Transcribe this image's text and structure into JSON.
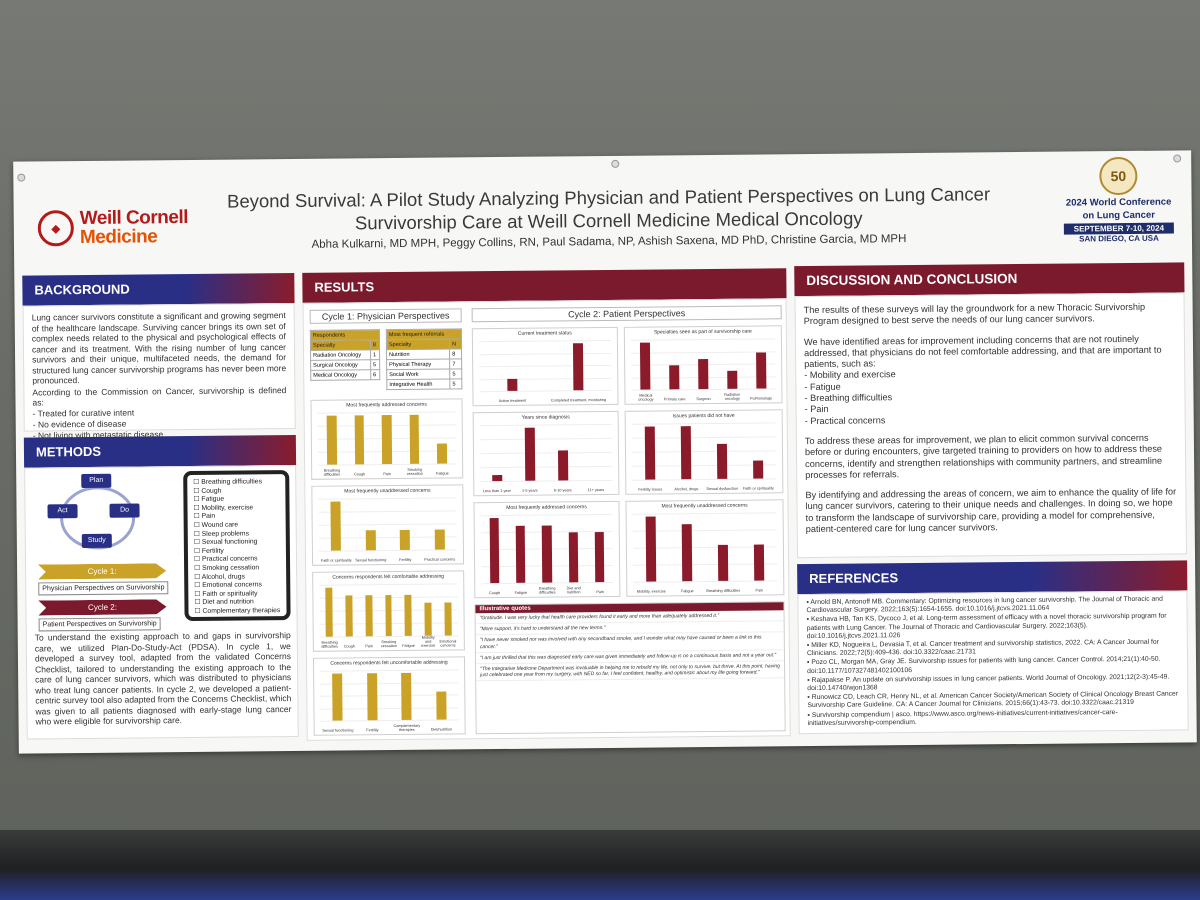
{
  "header": {
    "logo_line1": "Weill Cornell",
    "logo_line2": "Medicine",
    "title_line1": "Beyond Survival: A Pilot Study Analyzing Physician and Patient Perspectives on Lung Cancer",
    "title_line2": "Survivorship Care at Weill Cornell Medicine Medical Oncology",
    "authors": "Abha Kulkarni, MD MPH, Peggy Collins, RN,  Paul Sadama, NP,  Ashish Saxena, MD PhD, Christine Garcia, MD MPH",
    "conference_badge": "50",
    "conference_line1": "2024 World Conference",
    "conference_line2": "on Lung Cancer",
    "conference_dates": "SEPTEMBER 7-10, 2024",
    "conference_city": "SAN DIEGO, CA USA"
  },
  "background": {
    "heading": "BACKGROUND",
    "text": "Lung cancer survivors constitute a significant and growing segment of the healthcare landscape. Surviving cancer brings its own set of complex needs related to the physical and psychological effects of cancer and its treatment. With the rising number of lung cancer survivors and their unique, multifaceted needs, the demand for structured lung cancer survivorship programs has never been more pronounced.",
    "definition_intro": "According to the Commission on Cancer, survivorship is defined as:",
    "bullets": [
      "Treated for curative intent",
      "No evidence of disease",
      "Not living with metastatic disease"
    ]
  },
  "methods": {
    "heading": "METHODS",
    "cycle_nodes": [
      "Plan",
      "Do",
      "Study",
      "Act"
    ],
    "cycle1_label": "Cycle 1:",
    "cycle1_desc": "Physician Perspectives on Survivorship",
    "cycle2_label": "Cycle 2:",
    "cycle2_desc": "Patient Perspectives on Survivorship",
    "checklist": [
      "Breathing difficulties",
      "Cough",
      "Fatigue",
      "Mobility, exercise",
      "Pain",
      "Wound care",
      "Sleep problems",
      "Sexual functioning",
      "Fertility",
      "Practical concerns",
      "Smoking cessation",
      "Alcohol, drugs",
      "Emotional concerns",
      "Faith or spirituality",
      "Diet and nutrition",
      "Complementary therapies"
    ],
    "text": "To understand the existing approach to and gaps in survivorship care, we utilized Plan-Do-Study-Act (PDSA). In cycle 1, we developed a survey tool, adapted from the validated Concerns Checklist, tailored to understanding the existing approach to the care of lung cancer survivors, which was distributed to physicians who treat lung cancer patients. In cycle 2, we developed a patient-centric survey tool also adapted from the Concerns Checklist, which was given to all patients diagnosed with early-stage lung cancer who were eligible for survivorship care."
  },
  "results": {
    "heading": "RESULTS",
    "cycle1_title": "Cycle 1: Physician Perspectives",
    "cycle2_title": "Cycle 2: Patient Perspectives",
    "respondents_table": {
      "title": "Respondents",
      "headers": [
        "Specialty",
        "8"
      ],
      "rows": [
        [
          "Radiation Oncology",
          "1"
        ],
        [
          "Surgical Oncology",
          "5"
        ],
        [
          "Medical Oncology",
          "6"
        ]
      ]
    },
    "referrals_table": {
      "title": "Most frequent referrals",
      "headers": [
        "Specialty",
        "N"
      ],
      "rows": [
        [
          "Nutrition",
          "8"
        ],
        [
          "Physical Therapy",
          "7"
        ],
        [
          "Social Work",
          "5"
        ],
        [
          "Integrative Health",
          "5"
        ]
      ]
    },
    "quotes_heading": "Illustrative quotes",
    "quotes": [
      "\"Gratitude. I was very lucky that health care providers found it early and more than adequately addressed it.\"",
      "\"More support, it's hard to understand all the new terms.\"",
      "\"I have never smoked nor was involved with any secondhand smoke, and I wonder what may have caused or been a link to this cancer.\"",
      "\"I am just thrilled that this was diagnosed early care was given immediately and follow-up is on a continuous basis and not a year out.\"",
      "\"The Integrative Medicine Department was invaluable in helping me to rebuild my life, not only to survive, but thrive. At this point, having just celebrated one year from my surgery, with NED so far, I feel confident, healthy, and optimistic about my life going forward.\""
    ]
  },
  "chart_data": [
    {
      "id": "p1",
      "type": "bar",
      "title": "Most frequently addressed concerns",
      "color": "#c9a227",
      "categories": [
        "Breathing difficulties",
        "Cough",
        "Pain",
        "Smoking cessation",
        "Fatigue"
      ],
      "values": [
        5,
        5,
        5,
        5,
        2
      ]
    },
    {
      "id": "p2",
      "type": "bar",
      "title": "Most frequently unaddressed concerns",
      "color": "#c9a227",
      "categories": [
        "Faith or spirituality",
        "Sexual functioning",
        "Fertility",
        "Practical concerns"
      ],
      "values": [
        5,
        2,
        2,
        2
      ]
    },
    {
      "id": "p3",
      "type": "bar",
      "title": "Concerns respondents felt comfortable addressing",
      "color": "#c9a227",
      "categories": [
        "Breathing difficulties",
        "Cough",
        "Pain",
        "Smoking cessation",
        "Fatigue",
        "Mobility and exercise",
        "Emotional concerns"
      ],
      "values": [
        6,
        5,
        5,
        5,
        5,
        4,
        4
      ]
    },
    {
      "id": "p4",
      "type": "bar",
      "title": "Concerns respondents felt uncomfortable addressing",
      "color": "#c9a227",
      "categories": [
        "Sexual functioning",
        "Fertility",
        "Complementary therapies",
        "Diet/nutrition"
      ],
      "values": [
        5,
        5,
        5,
        3
      ]
    },
    {
      "id": "c1",
      "type": "bar",
      "title": "Current treatment status",
      "color": "#8b1a2b",
      "categories": [
        "Active treatment",
        "Completed treatment, monitoring"
      ],
      "values": [
        2,
        8
      ]
    },
    {
      "id": "c2",
      "type": "bar",
      "title": "Specialties seen as part of survivorship care",
      "color": "#8b1a2b",
      "categories": [
        "Medical oncology",
        "Primary care",
        "Surgeon",
        "Radiation oncology",
        "Pulmonology"
      ],
      "values": [
        8,
        4,
        5,
        3,
        6
      ]
    },
    {
      "id": "c3",
      "type": "bar",
      "title": "Years since diagnosis",
      "color": "#8b1a2b",
      "categories": [
        "Less than 1 year",
        "1-5 years",
        "6-10 years",
        "11+ years"
      ],
      "values": [
        1,
        9,
        5,
        0
      ]
    },
    {
      "id": "c4",
      "type": "bar",
      "title": "Issues patients did not have",
      "color": "#8b1a2b",
      "categories": [
        "Fertility issues",
        "Alcohol, drugs",
        "Sexual dysfunction",
        "Faith or spirituality"
      ],
      "values": [
        9,
        9,
        6,
        3
      ]
    },
    {
      "id": "c5",
      "type": "bar",
      "title": "Most frequently addressed concerns",
      "color": "#8b1a2b",
      "categories": [
        "Cough",
        "Fatigue",
        "Breathing difficulties",
        "Diet and nutrition",
        "Pain"
      ],
      "values": [
        9,
        8,
        8,
        7,
        7
      ]
    },
    {
      "id": "c6",
      "type": "bar",
      "title": "Most frequently unaddressed concerns",
      "color": "#8b1a2b",
      "categories": [
        "Mobility, exercise",
        "Fatigue",
        "Breathing difficulties",
        "Pain"
      ],
      "values": [
        9,
        8,
        5,
        5
      ]
    }
  ],
  "discussion": {
    "heading": "DISCUSSION AND CONCLUSION",
    "p1": "The results of these surveys will lay the groundwork for a new Thoracic Survivorship Program designed to best serve the needs of our lung cancer survivors.",
    "p2": "We have identified areas for improvement including concerns that are not routinely addressed, that physicians do not feel comfortable addressing, and that are important to patients, such as:",
    "bullets": [
      "Mobility and exercise",
      "Fatigue",
      "Breathing difficulties",
      "Pain",
      "Practical concerns"
    ],
    "p3": "To address these areas for improvement, we plan to elicit common survival concerns before or during encounters, give targeted training to providers on how to address these concerns, identify and strengthen relationships with community partners, and streamline processes for referrals.",
    "p4": "By identifying and addressing the areas of concern, we aim to enhance the quality of life for lung cancer survivors, catering to their unique needs and challenges. In doing so, we hope to transform the landscape of survivorship care, providing a model for comprehensive, patient-centered care for lung cancer survivors."
  },
  "references": {
    "heading": "REFERENCES",
    "items": [
      "Arnold BN, Antonoff MB. Commentary: Optimizing resources in lung cancer survivorship. The Journal of Thoracic and Cardiovascular Surgery. 2022;163(5):1654-1655. doi:10.1016/j.jtcvs.2021.11.064",
      "Keshava HB, Tan KS, Dycoco J, et al. Long-term assessment of efficacy with a novel thoracic survivorship program for patients with Lung Cancer. The Journal of Thoracic and Cardiovascular Surgery. 2022;163(5). doi:10.1016/j.jtcvs.2021.11.026",
      "Miller KD, Nogueira L, Devasia T, et al. Cancer treatment and survivorship statistics, 2022. CA: A Cancer Journal for Clinicians. 2022;72(5):409-436. doi:10.3322/caac.21731",
      "Pozo CL, Morgan MA, Gray JE. Survivorship issues for patients with lung cancer. Cancer Control. 2014;21(1):40-50. doi:10.1177/107327481402100106",
      "Rajapakse P. An update on survivorship issues in lung cancer patients. World Journal of Oncology. 2021;12(2-3):45-49. doi:10.14740/wjon1368",
      "Runowicz CD, Leach CR, Henry NL, et al. American Cancer Society/American Society of Clinical Oncology Breast Cancer Survivorship Care Guideline. CA: A Cancer Journal for Clinicians. 2015;66(1):43-73. doi:10.3322/caac.21319",
      "Survivorship compendium | asco. https://www.asco.org/news-initiatives/current-initiatives/cancer-care-initiatives/survivorship-compendium."
    ]
  }
}
